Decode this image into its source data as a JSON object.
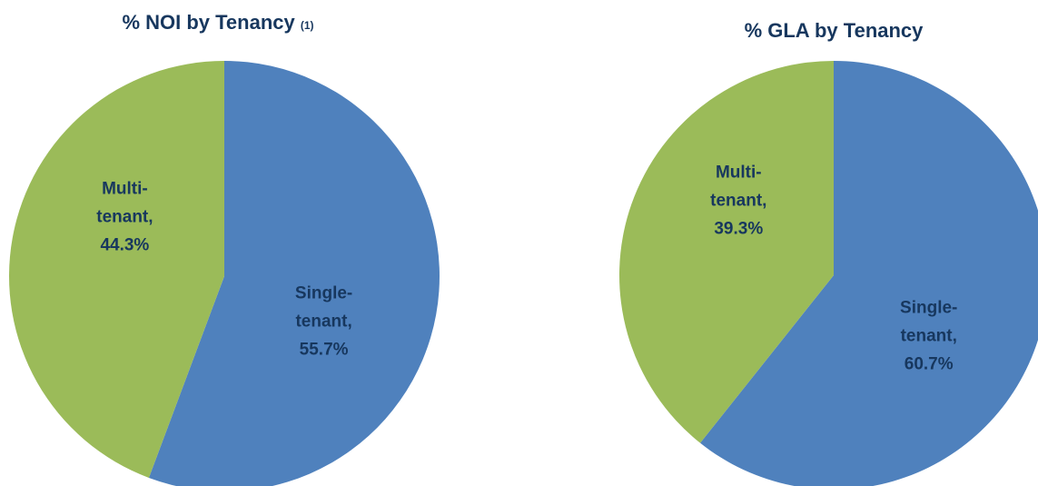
{
  "chart_data": [
    {
      "type": "pie",
      "title": "% NOI by Tenancy",
      "title_note": "(1)",
      "categories": [
        "Single-tenant,",
        "Multi-tenant,"
      ],
      "values": [
        55.7,
        44.3
      ],
      "value_labels": [
        "55.7%",
        "44.3%"
      ],
      "colors": [
        "#4f81bd",
        "#9bbb59"
      ]
    },
    {
      "type": "pie",
      "title": "% GLA by Tenancy",
      "categories": [
        "Single-tenant,",
        "Multi-tenant,"
      ],
      "values": [
        60.7,
        39.3
      ],
      "value_labels": [
        "60.7%",
        "39.3%"
      ],
      "colors": [
        "#4f81bd",
        "#9bbb59"
      ]
    }
  ]
}
